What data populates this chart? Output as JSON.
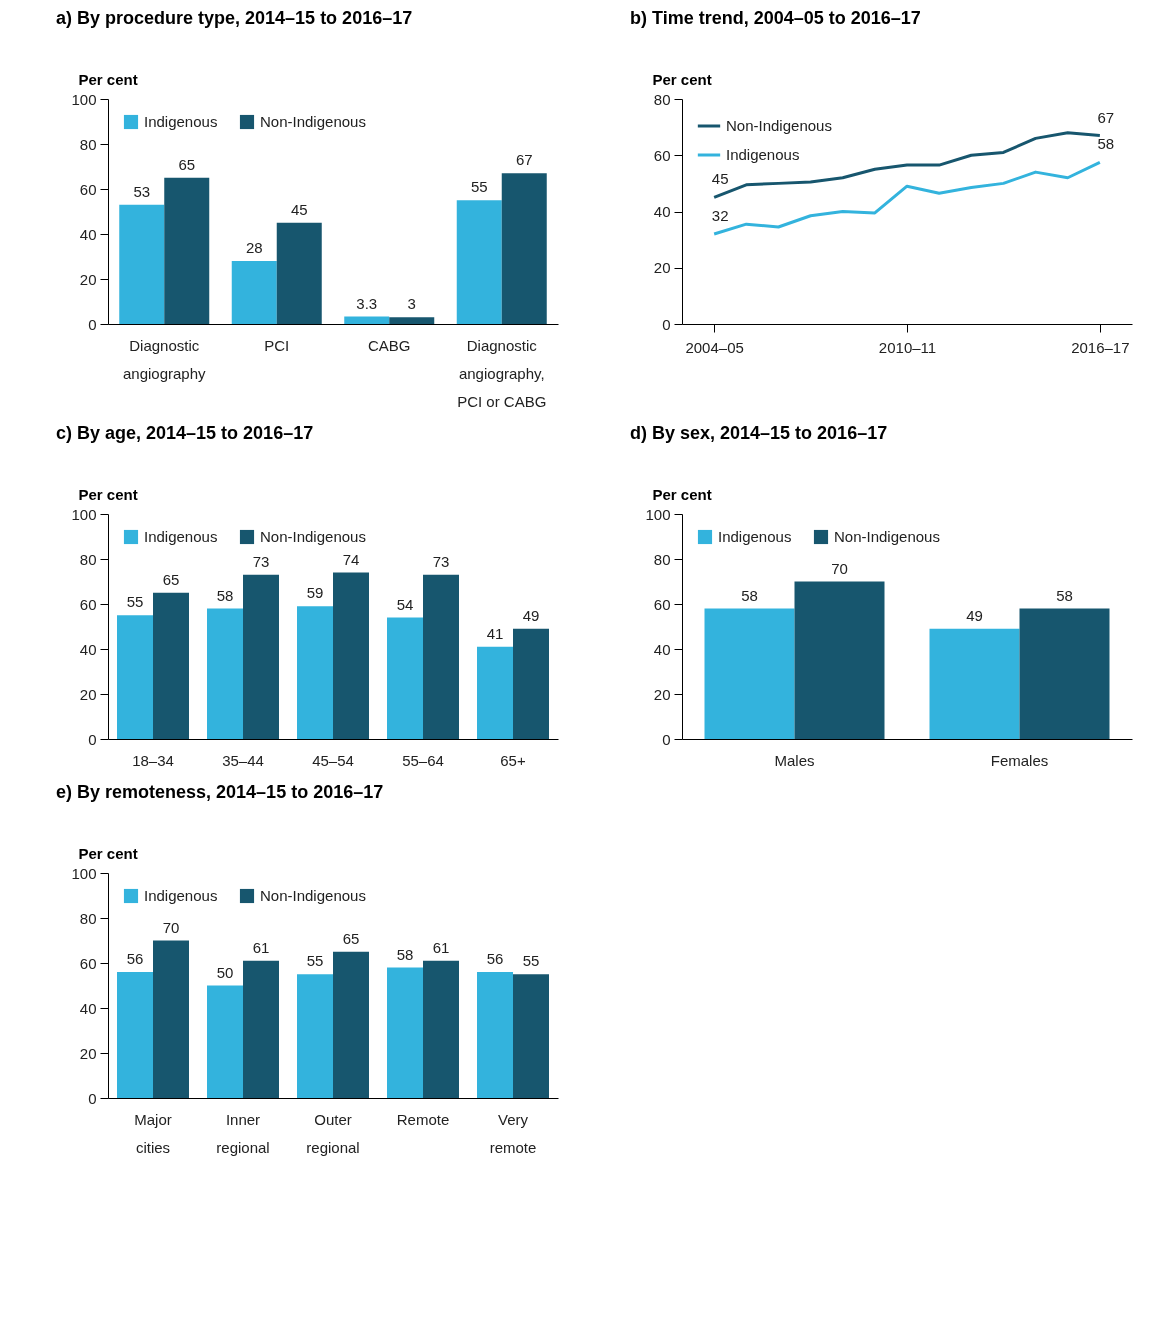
{
  "chart_data": [
    {
      "type": "bar",
      "title": "a) By procedure type, 2014–15 to 2016–17",
      "ylabel": "Per cent",
      "categories": [
        "Diagnostic angiography",
        "PCI",
        "CABG",
        "Diagnostic angiography, PCI or CABG"
      ],
      "series": [
        {
          "name": "Indigenous",
          "color": "#33b3dd",
          "values": [
            53,
            28,
            3.3,
            55
          ]
        },
        {
          "name": "Non-Indigenous",
          "color": "#17566e",
          "values": [
            65,
            45,
            3,
            67
          ]
        }
      ],
      "ylim": [
        0,
        100
      ],
      "yticks": [
        0,
        20,
        40,
        60,
        80,
        100
      ],
      "grid": false,
      "legend": "top left",
      "data_labels": true
    },
    {
      "type": "line",
      "title": "b) Time trend, 2004–05 to 2016–17",
      "ylabel": "Per cent",
      "categories": [
        "2004–05",
        null,
        null,
        null,
        null,
        null,
        "2010–11",
        null,
        null,
        null,
        null,
        null,
        "2016–17"
      ],
      "series": [
        {
          "name": "Non-Indigenous",
          "color": "#17566e",
          "values": [
            45,
            49.5,
            50,
            50.5,
            52,
            55,
            56.5,
            56.5,
            60,
            61,
            66,
            68,
            67
          ],
          "value_labels": [
            "45",
            null,
            null,
            null,
            null,
            null,
            null,
            null,
            null,
            null,
            null,
            null,
            "67"
          ]
        },
        {
          "name": "Indigenous",
          "color": "#33b3dd",
          "values": [
            32,
            35.5,
            34.5,
            38.5,
            40,
            39.5,
            49,
            46.5,
            48.5,
            50,
            54,
            52,
            57.5
          ],
          "value_labels": [
            "32",
            null,
            null,
            null,
            null,
            null,
            null,
            null,
            null,
            null,
            null,
            null,
            "58"
          ]
        }
      ],
      "ylim": [
        0,
        80
      ],
      "yticks": [
        0,
        20,
        40,
        60,
        80
      ],
      "grid": false,
      "legend": "top left",
      "marker": "none",
      "line_style": "solid"
    },
    {
      "type": "bar",
      "title": "c) By age, 2014–15 to 2016–17",
      "ylabel": "Per cent",
      "categories": [
        "18–34",
        "35–44",
        "45–54",
        "55–64",
        "65+"
      ],
      "series": [
        {
          "name": "Indigenous",
          "color": "#33b3dd",
          "values": [
            55,
            58,
            59,
            54,
            41
          ]
        },
        {
          "name": "Non-Indigenous",
          "color": "#17566e",
          "values": [
            65,
            73,
            74,
            73,
            49
          ]
        }
      ],
      "ylim": [
        0,
        100
      ],
      "yticks": [
        0,
        20,
        40,
        60,
        80,
        100
      ],
      "grid": false,
      "legend": "top left",
      "data_labels": true
    },
    {
      "type": "bar",
      "title": "d) By sex, 2014–15 to 2016–17",
      "ylabel": "Per cent",
      "categories": [
        "Males",
        "Females"
      ],
      "series": [
        {
          "name": "Indigenous",
          "color": "#33b3dd",
          "values": [
            58,
            49
          ]
        },
        {
          "name": "Non-Indigenous",
          "color": "#17566e",
          "values": [
            70,
            58
          ]
        }
      ],
      "ylim": [
        0,
        100
      ],
      "yticks": [
        0,
        20,
        40,
        60,
        80,
        100
      ],
      "grid": false,
      "legend": "top left",
      "data_labels": true
    },
    {
      "type": "bar",
      "title": "e) By remoteness, 2014–15 to 2016–17",
      "ylabel": "Per cent",
      "categories": [
        "Major cities",
        "Inner regional",
        "Outer regional",
        "Remote",
        "Very remote"
      ],
      "series": [
        {
          "name": "Indigenous",
          "color": "#33b3dd",
          "values": [
            56,
            50,
            55,
            58,
            56
          ]
        },
        {
          "name": "Non-Indigenous",
          "color": "#17566e",
          "values": [
            70,
            61,
            65,
            61,
            55
          ]
        }
      ],
      "ylim": [
        0,
        100
      ],
      "yticks": [
        0,
        20,
        40,
        60,
        80,
        100
      ],
      "grid": false,
      "legend": "top left",
      "data_labels": true
    }
  ]
}
